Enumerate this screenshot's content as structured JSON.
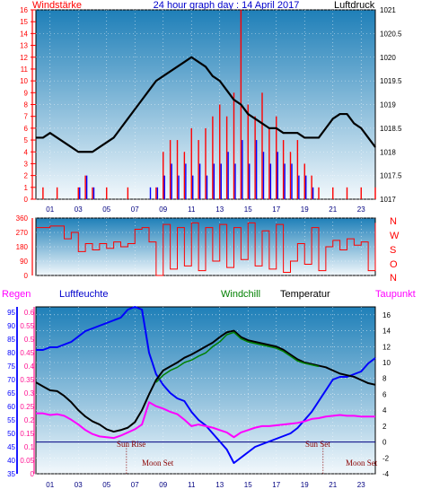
{
  "header": {
    "left_title": "Windstärke",
    "center_title": "24 hour graph day : 14 April 2017",
    "right_title": "Luftdruck"
  },
  "colors": {
    "plot_top": "#1e7fb8",
    "plot_bottom": "#f2f8fc",
    "wind": "#ff0000",
    "gust": "#0000ff",
    "pressure": "#000000",
    "humidity": "#0000ff",
    "temperature": "#000000",
    "windchill": "#008000",
    "dewpoint": "#ff00ff",
    "rain": "#ff1493"
  },
  "x_ticks": [
    "01",
    "03",
    "05",
    "07",
    "09",
    "11",
    "13",
    "15",
    "17",
    "19",
    "21",
    "23"
  ],
  "panel1_axes": {
    "wind_ticks": [
      "0",
      "1",
      "2",
      "3",
      "4",
      "5",
      "6",
      "7",
      "8",
      "9",
      "10",
      "11",
      "12",
      "13",
      "14",
      "15",
      "16"
    ],
    "pressure_ticks": [
      "1017",
      "1017.5",
      "1018",
      "1018.5",
      "1019",
      "1019.5",
      "1020",
      "1020.5",
      "1021"
    ]
  },
  "panel2": {
    "dir_ticks": [
      "0",
      "90",
      "180",
      "270",
      "360"
    ],
    "compass": [
      "N",
      "W",
      "S",
      "O",
      "N"
    ]
  },
  "panel3": {
    "titles": {
      "rain": "Regen",
      "humidity": "Luftfeuchte",
      "windchill": "Windchill",
      "temperature": "Temperatur",
      "dewpoint": "Taupunkt"
    },
    "humidity_ticks": [
      "35",
      "40",
      "45",
      "50",
      "55",
      "60",
      "65",
      "70",
      "75",
      "80",
      "85",
      "90",
      "95"
    ],
    "rain_ticks": [
      "0",
      "0.05",
      "0.1",
      "0.15",
      "0.2",
      "0.25",
      "0.3",
      "0.35",
      "0.4",
      "0.45",
      "0.5",
      "0.55",
      "0.6"
    ],
    "temp_ticks": [
      "-4",
      "-2",
      "0",
      "2",
      "4",
      "6",
      "8",
      "10",
      "12",
      "14",
      "16"
    ],
    "annotations": {
      "sun_rise": "Sun Rise",
      "sun_set": "Sun Set",
      "moon_set_1": "Moon Set",
      "moon_set_2": "Moon Set"
    }
  },
  "chart_data": [
    {
      "type": "line",
      "title": "24 hour graph day : 14 April 2017",
      "xlabel": "",
      "x_range_hours": [
        0,
        24
      ],
      "series": [
        {
          "name": "Windstärke",
          "axis": "left",
          "ylim": [
            0,
            16
          ],
          "x": [
            0,
            0.5,
            1,
            1.5,
            2,
            2.5,
            3,
            3.5,
            4,
            4.5,
            5,
            5.5,
            6,
            6.5,
            7,
            7.5,
            8,
            8.5,
            9,
            9.5,
            10,
            10.5,
            11,
            11.5,
            12,
            12.5,
            13,
            13.5,
            14,
            14.5,
            15,
            15.5,
            16,
            16.5,
            17,
            17.5,
            18,
            18.5,
            19,
            19.5,
            20,
            20.5,
            21,
            21.5,
            22,
            22.5,
            23,
            23.5,
            24
          ],
          "values": [
            0,
            1,
            0,
            1,
            0,
            0,
            1,
            2,
            1,
            0,
            1,
            0,
            0,
            1,
            0,
            0,
            0,
            1,
            4,
            5,
            5,
            4,
            6,
            5,
            6,
            7,
            8,
            7,
            9,
            16,
            8,
            7,
            9,
            6,
            7,
            5,
            4,
            5,
            3,
            2,
            1,
            0,
            1,
            0,
            1,
            0,
            1,
            0,
            1
          ]
        },
        {
          "name": "Gust",
          "axis": "left",
          "ylim": [
            0,
            16
          ],
          "x": [
            0,
            1,
            2,
            3,
            3.5,
            4,
            5,
            6,
            7,
            8,
            8.5,
            9,
            9.5,
            10,
            10.5,
            11,
            11.5,
            12,
            12.5,
            13,
            13.5,
            14,
            14.5,
            15,
            15.5,
            16,
            16.5,
            17,
            17.5,
            18,
            18.5,
            19,
            19.5,
            20,
            21,
            22,
            23,
            24
          ],
          "values": [
            0,
            0,
            0,
            1,
            2,
            1,
            0,
            0,
            0,
            1,
            1,
            2,
            3,
            2,
            3,
            2,
            3,
            2,
            3,
            3,
            4,
            3,
            5,
            3,
            5,
            4,
            3,
            4,
            3,
            3,
            2,
            2,
            1,
            0,
            0,
            0,
            0,
            0
          ]
        },
        {
          "name": "Luftdruck",
          "axis": "right",
          "ylim": [
            1017,
            1021
          ],
          "x": [
            0,
            0.5,
            1,
            1.5,
            2,
            2.5,
            3,
            3.5,
            4,
            4.5,
            5,
            5.5,
            6,
            6.5,
            7,
            7.5,
            8,
            8.5,
            9,
            9.5,
            10,
            10.5,
            11,
            11.5,
            12,
            12.5,
            13,
            13.5,
            14,
            14.5,
            15,
            15.5,
            16,
            16.5,
            17,
            17.5,
            18,
            18.5,
            19,
            19.5,
            20,
            20.5,
            21,
            21.5,
            22,
            22.5,
            23,
            23.5,
            24
          ],
          "values": [
            1018.3,
            1018.3,
            1018.4,
            1018.3,
            1018.2,
            1018.1,
            1018.0,
            1018.0,
            1018.0,
            1018.1,
            1018.2,
            1018.3,
            1018.5,
            1018.7,
            1018.9,
            1019.1,
            1019.3,
            1019.5,
            1019.6,
            1019.7,
            1019.8,
            1019.9,
            1020.0,
            1019.9,
            1019.8,
            1019.6,
            1019.5,
            1019.3,
            1019.1,
            1019.0,
            1018.8,
            1018.7,
            1018.6,
            1018.5,
            1018.5,
            1018.4,
            1018.4,
            1018.4,
            1018.3,
            1018.3,
            1018.3,
            1018.5,
            1018.7,
            1018.8,
            1018.8,
            1018.6,
            1018.5,
            1018.3,
            1018.1
          ]
        }
      ]
    },
    {
      "type": "line",
      "title": "",
      "series": [
        {
          "name": "",
          "ylim": [
            0,
            360
          ],
          "x": [
            0,
            1,
            1.5,
            2,
            2.5,
            3,
            3.5,
            4,
            4.5,
            5,
            5.5,
            6,
            6.5,
            7,
            7.5,
            8,
            8.5,
            9,
            9.5,
            10,
            10.5,
            11,
            11.5,
            12,
            12.5,
            13,
            13.5,
            14,
            14.5,
            15,
            15.5,
            16,
            16.5,
            17,
            17.5,
            18,
            18.5,
            19,
            19.5,
            20,
            20.5,
            21,
            21.5,
            22,
            22.5,
            23,
            23.5,
            24
          ],
          "values": [
            300,
            310,
            310,
            230,
            270,
            150,
            200,
            160,
            200,
            170,
            210,
            180,
            200,
            290,
            300,
            210,
            0,
            320,
            40,
            300,
            60,
            330,
            30,
            300,
            90,
            320,
            50,
            300,
            100,
            330,
            60,
            280,
            40,
            320,
            20,
            90,
            200,
            70,
            300,
            30,
            180,
            220,
            160,
            230,
            190,
            210,
            30,
            330
          ]
        }
      ]
    },
    {
      "type": "line",
      "title": "",
      "series": [
        {
          "name": "Luftfeuchte",
          "axis": "humidity",
          "ylim": [
            35,
            97
          ],
          "x": [
            0,
            0.5,
            1,
            1.5,
            2,
            2.5,
            3,
            3.5,
            4,
            4.5,
            5,
            5.5,
            6,
            6.5,
            7,
            7.5,
            8,
            8.5,
            9,
            9.5,
            10,
            10.5,
            11,
            11.5,
            12,
            12.5,
            13,
            13.5,
            14,
            14.5,
            15,
            15.5,
            16,
            16.5,
            17,
            17.5,
            18,
            18.5,
            19,
            19.5,
            20,
            20.5,
            21,
            21.5,
            22,
            22.5,
            23,
            23.5,
            24
          ],
          "values": [
            81,
            81,
            82,
            82,
            83,
            84,
            86,
            88,
            89,
            90,
            91,
            92,
            93,
            96,
            97,
            96,
            80,
            72,
            68,
            65,
            63,
            62,
            58,
            55,
            53,
            50,
            47,
            44,
            39,
            41,
            43,
            45,
            46,
            47,
            48,
            49,
            50,
            52,
            55,
            58,
            62,
            66,
            70,
            71,
            71,
            72,
            73,
            76,
            78
          ]
        },
        {
          "name": "Temperatur",
          "axis": "temp",
          "ylim": [
            -4,
            17
          ],
          "x": [
            0,
            0.5,
            1,
            1.5,
            2,
            2.5,
            3,
            3.5,
            4,
            4.5,
            5,
            5.5,
            6,
            6.5,
            7,
            7.5,
            8,
            8.5,
            9,
            9.5,
            10,
            10.5,
            11,
            11.5,
            12,
            12.5,
            13,
            13.5,
            14,
            14.5,
            15,
            15.5,
            16,
            16.5,
            17,
            17.5,
            18,
            18.5,
            19,
            19.5,
            20,
            20.5,
            21,
            21.5,
            22,
            22.5,
            23,
            23.5,
            24
          ],
          "values": [
            7.5,
            7.0,
            6.5,
            6.4,
            5.8,
            5.0,
            4.0,
            3.2,
            2.6,
            2.2,
            1.6,
            1.3,
            1.5,
            1.8,
            2.5,
            4.0,
            6.0,
            7.8,
            9.0,
            9.5,
            10.0,
            10.6,
            11.0,
            11.5,
            12.0,
            12.5,
            13.2,
            13.8,
            14.0,
            13.2,
            12.8,
            12.6,
            12.4,
            12.2,
            12.0,
            11.6,
            11.0,
            10.4,
            10.0,
            9.8,
            9.6,
            9.4,
            9.0,
            8.6,
            8.4,
            8.2,
            7.8,
            7.4,
            7.2
          ]
        },
        {
          "name": "Windchill",
          "axis": "temp",
          "ylim": [
            -4,
            17
          ],
          "x": [
            8.5,
            9,
            9.5,
            10,
            10.5,
            11,
            11.5,
            12,
            12.5,
            13,
            13.5,
            14,
            14.5,
            15,
            15.5,
            16,
            16.5,
            17,
            17.5,
            18,
            18.5,
            19,
            19.5,
            20
          ],
          "values": [
            7.5,
            8.4,
            9.0,
            9.4,
            10.0,
            10.3,
            10.8,
            11.2,
            12.0,
            12.6,
            13.5,
            13.8,
            13.0,
            12.6,
            12.4,
            12.2,
            12.0,
            11.8,
            11.4,
            10.8,
            10.2,
            9.9,
            9.7,
            9.5
          ]
        },
        {
          "name": "Taupunkt",
          "axis": "temp",
          "ylim": [
            -4,
            17
          ],
          "x": [
            0,
            0.5,
            1,
            1.5,
            2,
            2.5,
            3,
            3.5,
            4,
            4.5,
            5,
            5.5,
            6,
            6.5,
            7,
            7.5,
            8,
            8.5,
            9,
            9.5,
            10,
            10.5,
            11,
            11.5,
            12,
            12.5,
            13,
            13.5,
            14,
            14.5,
            15,
            15.5,
            16,
            16.5,
            17,
            17.5,
            18,
            18.5,
            19,
            19.5,
            20,
            20.5,
            21,
            21.5,
            22,
            22.5,
            23,
            23.5,
            24
          ],
          "values": [
            3.6,
            3.6,
            3.4,
            3.5,
            3.3,
            2.8,
            2.2,
            1.5,
            1.0,
            0.7,
            0.6,
            0.5,
            0.8,
            1.2,
            1.6,
            2.2,
            5.0,
            4.5,
            4.2,
            3.8,
            3.5,
            2.8,
            2.0,
            2.2,
            2.0,
            1.8,
            1.5,
            1.2,
            0.6,
            1.2,
            1.5,
            1.8,
            2.0,
            2.0,
            2.1,
            2.2,
            2.3,
            2.4,
            2.6,
            2.9,
            3.0,
            3.2,
            3.3,
            3.4,
            3.3,
            3.3,
            3.2,
            3.2,
            3.2
          ]
        },
        {
          "name": "Regen",
          "axis": "rain",
          "ylim": [
            0,
            0.6
          ],
          "x": [
            0,
            24
          ],
          "values": [
            0,
            0
          ]
        }
      ]
    }
  ]
}
